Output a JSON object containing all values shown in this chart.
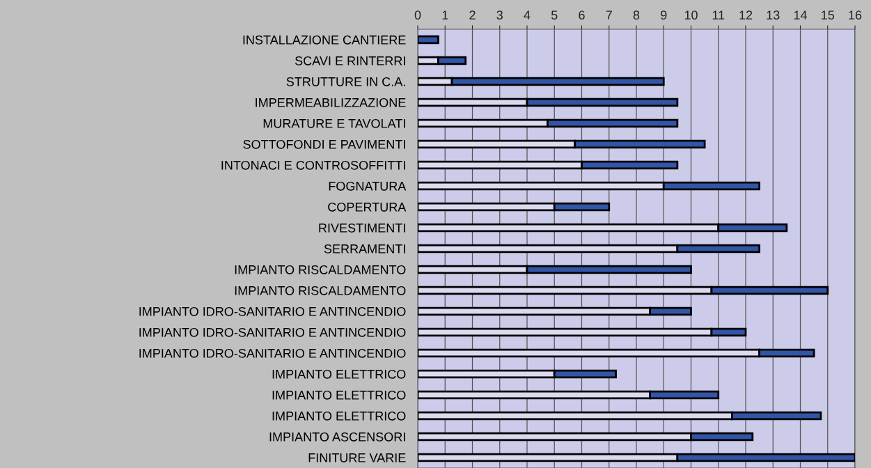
{
  "chart_data": {
    "type": "bar",
    "orientation": "horizontal",
    "stacked": true,
    "categories": [
      "INSTALLAZIONE CANTIERE",
      "SCAVI E RINTERRI",
      "STRUTTURE IN C.A.",
      "IMPERMEABILIZZAZIONE",
      "MURATURE E TAVOLATI",
      "SOTTOFONDI E PAVIMENTI",
      "INTONACI E CONTROSOFFITTI",
      "FOGNATURA",
      "COPERTURA",
      "RIVESTIMENTI",
      "SERRAMENTI",
      "IMPIANTO RISCALDAMENTO",
      "IMPIANTO RISCALDAMENTO",
      "IMPIANTO IDRO-SANITARIO E ANTINCENDIO",
      "IMPIANTO IDRO-SANITARIO E ANTINCENDIO",
      "IMPIANTO IDRO-SANITARIO E ANTINCENDIO",
      "IMPIANTO ELETTRICO",
      "IMPIANTO ELETTRICO",
      "IMPIANTO ELETTRICO",
      "IMPIANTO ASCENSORI",
      "FINITURE VARIE"
    ],
    "series": [
      {
        "color": "#dcdaf0",
        "values": [
          0,
          0.75,
          1.25,
          4,
          4.75,
          5.75,
          6,
          9,
          5,
          11,
          9.5,
          4,
          10.75,
          8.5,
          10.75,
          12.5,
          5,
          8.5,
          11.5,
          10,
          9.5
        ]
      },
      {
        "color": "#3355a5",
        "values": [
          0.75,
          1,
          7.75,
          5.5,
          4.75,
          4.75,
          3.5,
          3.5,
          2,
          2.5,
          3,
          6,
          4.25,
          1.5,
          1.25,
          2,
          2.25,
          2.5,
          3.25,
          2.25,
          6.5
        ]
      }
    ],
    "xlim": [
      0,
      16
    ],
    "xticks": [
      0,
      1,
      2,
      3,
      4,
      5,
      6,
      7,
      8,
      9,
      10,
      11,
      12,
      13,
      14,
      15,
      16
    ],
    "grid": "x"
  }
}
